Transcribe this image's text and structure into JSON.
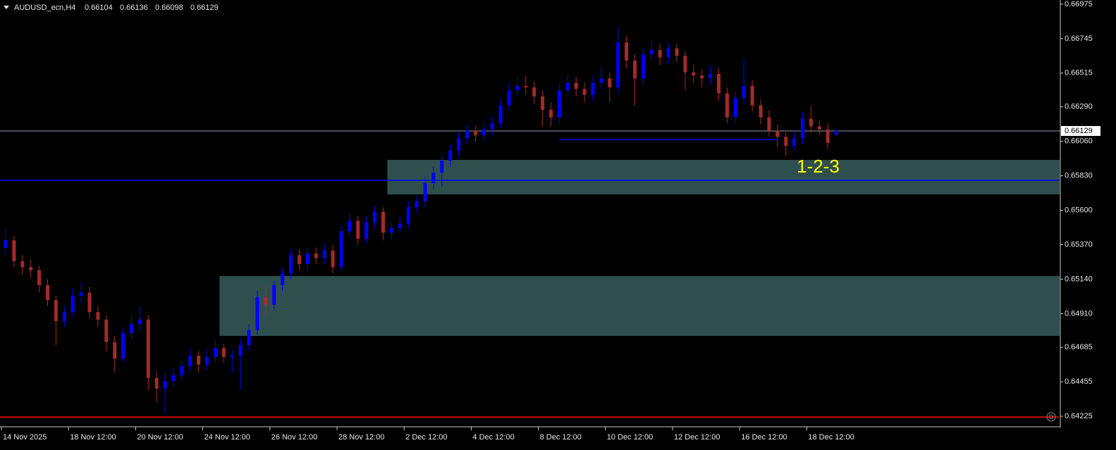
{
  "chart_data": {
    "type": "candlestick",
    "symbol": "AUDUSD_ecn,H4",
    "categories": [
      "14 Nov 2025",
      null,
      null,
      null,
      null,
      null,
      null,
      null,
      "18 Nov 12:00",
      null,
      null,
      null,
      null,
      null,
      null,
      null,
      "20 Nov 12:00",
      null,
      null,
      null,
      null,
      null,
      null,
      null,
      "24 Nov 12:00",
      null,
      null,
      null,
      null,
      null,
      null,
      null,
      "26 Nov 12:00",
      null,
      null,
      null,
      null,
      null,
      null,
      null,
      "28 Nov 12:00",
      null,
      null,
      null,
      null,
      null,
      null,
      null,
      "2 Dec 12:00",
      null,
      null,
      null,
      null,
      null,
      null,
      null,
      "4 Dec 12:00",
      null,
      null,
      null,
      null,
      null,
      null,
      null,
      "8 Dec 12:00",
      null,
      null,
      null,
      null,
      null,
      null,
      null,
      "10 Dec 12:00",
      null,
      null,
      null,
      null,
      null,
      null,
      null,
      "12 Dec 12:00",
      null,
      null,
      null,
      null,
      null,
      null,
      null,
      "16 Dec 12:00",
      null,
      null,
      null,
      null,
      null,
      null,
      null,
      "18 Dec 12:00",
      null,
      null,
      null
    ],
    "open": [
      0.6535,
      0.654,
      0.6526,
      0.6522,
      0.652,
      0.651,
      0.65,
      0.6486,
      0.6492,
      0.6503,
      0.6505,
      0.6492,
      0.6487,
      0.6472,
      0.6461,
      0.6478,
      0.6484,
      0.6487,
      0.6448,
      0.6441,
      0.6446,
      0.645,
      0.6456,
      0.6463,
      0.6457,
      0.6462,
      0.6468,
      0.6462,
      0.6463,
      0.647,
      0.648,
      0.6502,
      0.6497,
      0.651,
      0.6518,
      0.653,
      0.6524,
      0.6531,
      0.6528,
      0.6533,
      0.6522,
      0.6546,
      0.6553,
      0.6541,
      0.6552,
      0.6559,
      0.6545,
      0.6548,
      0.6551,
      0.6562,
      0.6566,
      0.6578,
      0.6585,
      0.6593,
      0.66,
      0.6608,
      0.6613,
      0.661,
      0.6614,
      0.6618,
      0.663,
      0.664,
      0.6643,
      0.6642,
      0.6636,
      0.6627,
      0.6622,
      0.664,
      0.6645,
      0.6641,
      0.6637,
      0.6645,
      0.6648,
      0.6642,
      0.6672,
      0.666,
      0.6648,
      0.6664,
      0.6667,
      0.6662,
      0.6668,
      0.6663,
      0.6652,
      0.665,
      0.6648,
      0.6651,
      0.6638,
      0.6622,
      0.6635,
      0.6643,
      0.663,
      0.6622,
      0.6613,
      0.6609,
      0.6603,
      0.6608,
      0.6621,
      0.6616,
      0.6614,
      0.66104
    ],
    "high": [
      0.6548,
      0.6543,
      0.653,
      0.6527,
      0.6523,
      0.6514,
      0.6503,
      0.6496,
      0.6508,
      0.6512,
      0.6509,
      0.6496,
      0.649,
      0.6476,
      0.6482,
      0.649,
      0.6496,
      0.649,
      0.6452,
      0.6452,
      0.6455,
      0.646,
      0.6468,
      0.6466,
      0.6467,
      0.6473,
      0.6471,
      0.6467,
      0.6474,
      0.6484,
      0.6506,
      0.6509,
      0.6513,
      0.6521,
      0.6534,
      0.6534,
      0.6535,
      0.6535,
      0.6537,
      0.6537,
      0.655,
      0.6558,
      0.6556,
      0.6556,
      0.6563,
      0.6562,
      0.6552,
      0.6555,
      0.6566,
      0.657,
      0.6582,
      0.6589,
      0.6597,
      0.6604,
      0.6612,
      0.6617,
      0.6616,
      0.6618,
      0.6622,
      0.6634,
      0.6645,
      0.6649,
      0.665,
      0.6646,
      0.664,
      0.6632,
      0.6644,
      0.665,
      0.6649,
      0.6645,
      0.6649,
      0.6655,
      0.6652,
      0.6682,
      0.6676,
      0.6664,
      0.6668,
      0.6672,
      0.6671,
      0.6672,
      0.6671,
      0.6666,
      0.6657,
      0.6654,
      0.6656,
      0.6655,
      0.6642,
      0.6639,
      0.6661,
      0.6647,
      0.6634,
      0.6627,
      0.6617,
      0.6612,
      0.6612,
      0.6626,
      0.663,
      0.662,
      0.6618,
      0.66136
    ],
    "low": [
      0.6531,
      0.6522,
      0.6517,
      0.6515,
      0.6505,
      0.6496,
      0.647,
      0.6482,
      0.6489,
      0.6498,
      0.6488,
      0.6482,
      0.6466,
      0.6452,
      0.6458,
      0.6474,
      0.648,
      0.644,
      0.6432,
      0.6424,
      0.6442,
      0.6446,
      0.6452,
      0.6452,
      0.6453,
      0.6458,
      0.6458,
      0.6452,
      0.644,
      0.6466,
      0.6477,
      0.649,
      0.6493,
      0.6506,
      0.6514,
      0.652,
      0.652,
      0.6524,
      0.6524,
      0.6518,
      0.6519,
      0.6542,
      0.6537,
      0.6538,
      0.6548,
      0.654,
      0.6541,
      0.6545,
      0.6548,
      0.6558,
      0.6562,
      0.6574,
      0.6576,
      0.6589,
      0.6596,
      0.6604,
      0.6606,
      0.6606,
      0.661,
      0.6615,
      0.6627,
      0.6636,
      0.6637,
      0.6631,
      0.6616,
      0.6616,
      0.6618,
      0.6636,
      0.6636,
      0.6632,
      0.6633,
      0.6641,
      0.6632,
      0.6638,
      0.6655,
      0.663,
      0.6644,
      0.666,
      0.6657,
      0.6658,
      0.6659,
      0.664,
      0.6645,
      0.6642,
      0.6644,
      0.6633,
      0.6618,
      0.6618,
      0.6631,
      0.6626,
      0.6617,
      0.6609,
      0.6602,
      0.6596,
      0.66,
      0.6604,
      0.6612,
      0.661,
      0.6601,
      0.66098
    ],
    "close": [
      0.654,
      0.6526,
      0.6522,
      0.652,
      0.651,
      0.65,
      0.6486,
      0.6492,
      0.6503,
      0.6505,
      0.6492,
      0.6487,
      0.6472,
      0.6461,
      0.6478,
      0.6484,
      0.6487,
      0.6448,
      0.6441,
      0.6446,
      0.645,
      0.6456,
      0.6463,
      0.6457,
      0.6462,
      0.6468,
      0.6462,
      0.6463,
      0.647,
      0.648,
      0.6502,
      0.6497,
      0.651,
      0.6518,
      0.653,
      0.6524,
      0.6531,
      0.6528,
      0.6533,
      0.6522,
      0.6546,
      0.6553,
      0.6541,
      0.6552,
      0.6559,
      0.6545,
      0.6548,
      0.6551,
      0.6562,
      0.6566,
      0.6578,
      0.6585,
      0.6593,
      0.66,
      0.6608,
      0.6613,
      0.661,
      0.6614,
      0.6618,
      0.663,
      0.664,
      0.6643,
      0.6642,
      0.6636,
      0.6627,
      0.6622,
      0.664,
      0.6645,
      0.6641,
      0.6637,
      0.6645,
      0.6648,
      0.6642,
      0.6672,
      0.666,
      0.6648,
      0.6664,
      0.6667,
      0.6662,
      0.6668,
      0.6663,
      0.6652,
      0.665,
      0.6648,
      0.6651,
      0.6638,
      0.6622,
      0.6635,
      0.6643,
      0.663,
      0.6622,
      0.6613,
      0.6609,
      0.6603,
      0.6608,
      0.6621,
      0.6616,
      0.6614,
      0.6605,
      0.66129
    ],
    "up_color": "#0000ff",
    "down_color": "#a52a2a",
    "ylim": [
      0.64155,
      0.67003
    ],
    "yticks": [
      0.66975,
      0.66745,
      0.66515,
      {
        "value": 0.6629,
        "label": "0.66290"
      },
      {
        "value": 0.6606,
        "label": "0.66060"
      },
      {
        "value": 0.6583,
        "label": "0.65830"
      },
      {
        "value": 0.656,
        "label": "0.65600"
      },
      {
        "value": 0.6537,
        "label": "0.65370"
      },
      {
        "value": 0.6514,
        "label": "0.65140"
      },
      {
        "value": 0.6491,
        "label": "0.64910"
      },
      0.64685,
      0.64455,
      0.64225
    ],
    "zones": [
      {
        "top": 0.65936,
        "bottom": 0.65706,
        "start": 45.5,
        "color": "#2f4f4f"
      },
      {
        "top": 0.65161,
        "bottom": 0.64761,
        "start": 25.5,
        "color": "#2f4f4f"
      }
    ],
    "hlines": [
      {
        "value": 0.658,
        "color": "#0000ff"
      },
      {
        "value": 0.6422,
        "color": "#ff0000"
      }
    ],
    "segments": [
      {
        "value": 0.66072,
        "start": 66,
        "end": 92,
        "color": "#0000ff"
      }
    ],
    "annotations": [
      {
        "text": "1-2-3",
        "value": 0.65884,
        "index": 94.3,
        "color": "#ffff00"
      }
    ]
  }
}
